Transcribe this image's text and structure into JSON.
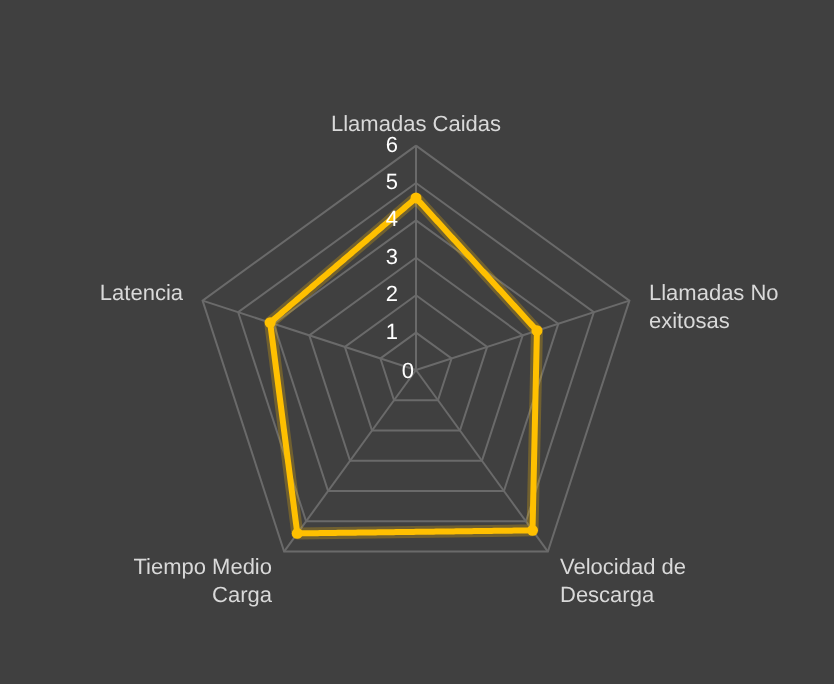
{
  "chart_data": {
    "type": "radar",
    "categories": [
      "Llamadas Caidas",
      "Llamadas No exitosas",
      "Velocidad de Descarga",
      "Tiempo Medio Carga",
      "Latencia"
    ],
    "series": [
      {
        "color": "#ffc000",
        "values": [
          4.6,
          3.4,
          5.3,
          5.4,
          4.1
        ]
      }
    ],
    "ylim": [
      0,
      6
    ],
    "yticks": [
      0,
      1,
      2,
      3,
      4,
      5,
      6
    ],
    "grid": true,
    "marker": "circle",
    "line_style": "solid"
  }
}
